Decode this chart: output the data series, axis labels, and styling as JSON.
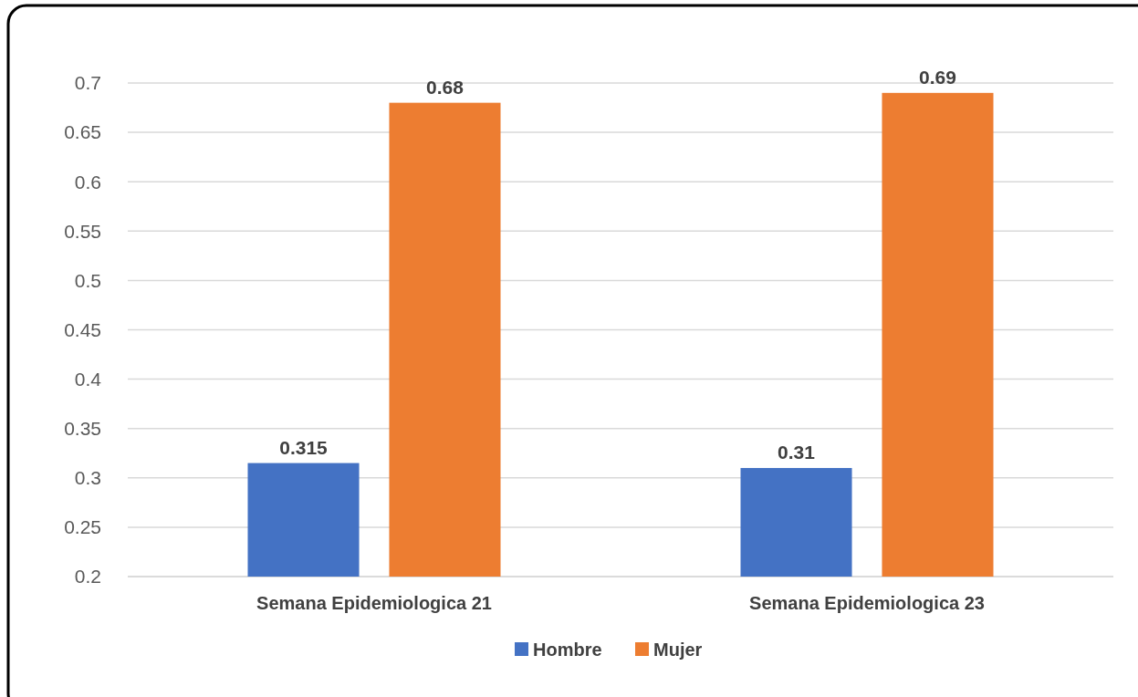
{
  "chart_data": {
    "type": "bar",
    "categories": [
      "Semana Epidemiologica 21",
      "Semana Epidemiologica 23"
    ],
    "series": [
      {
        "name": "Hombre",
        "color": "#4472c4",
        "values": [
          0.315,
          0.31
        ]
      },
      {
        "name": "Mujer",
        "color": "#ed7d31",
        "values": [
          0.68,
          0.69
        ]
      }
    ],
    "ylim": [
      0.2,
      0.7
    ],
    "yticks": [
      0.2,
      0.25,
      0.3,
      0.35,
      0.4,
      0.45,
      0.5,
      0.55,
      0.6,
      0.65,
      0.7
    ],
    "grid": "y",
    "legend": "bottom",
    "data_labels": true
  }
}
